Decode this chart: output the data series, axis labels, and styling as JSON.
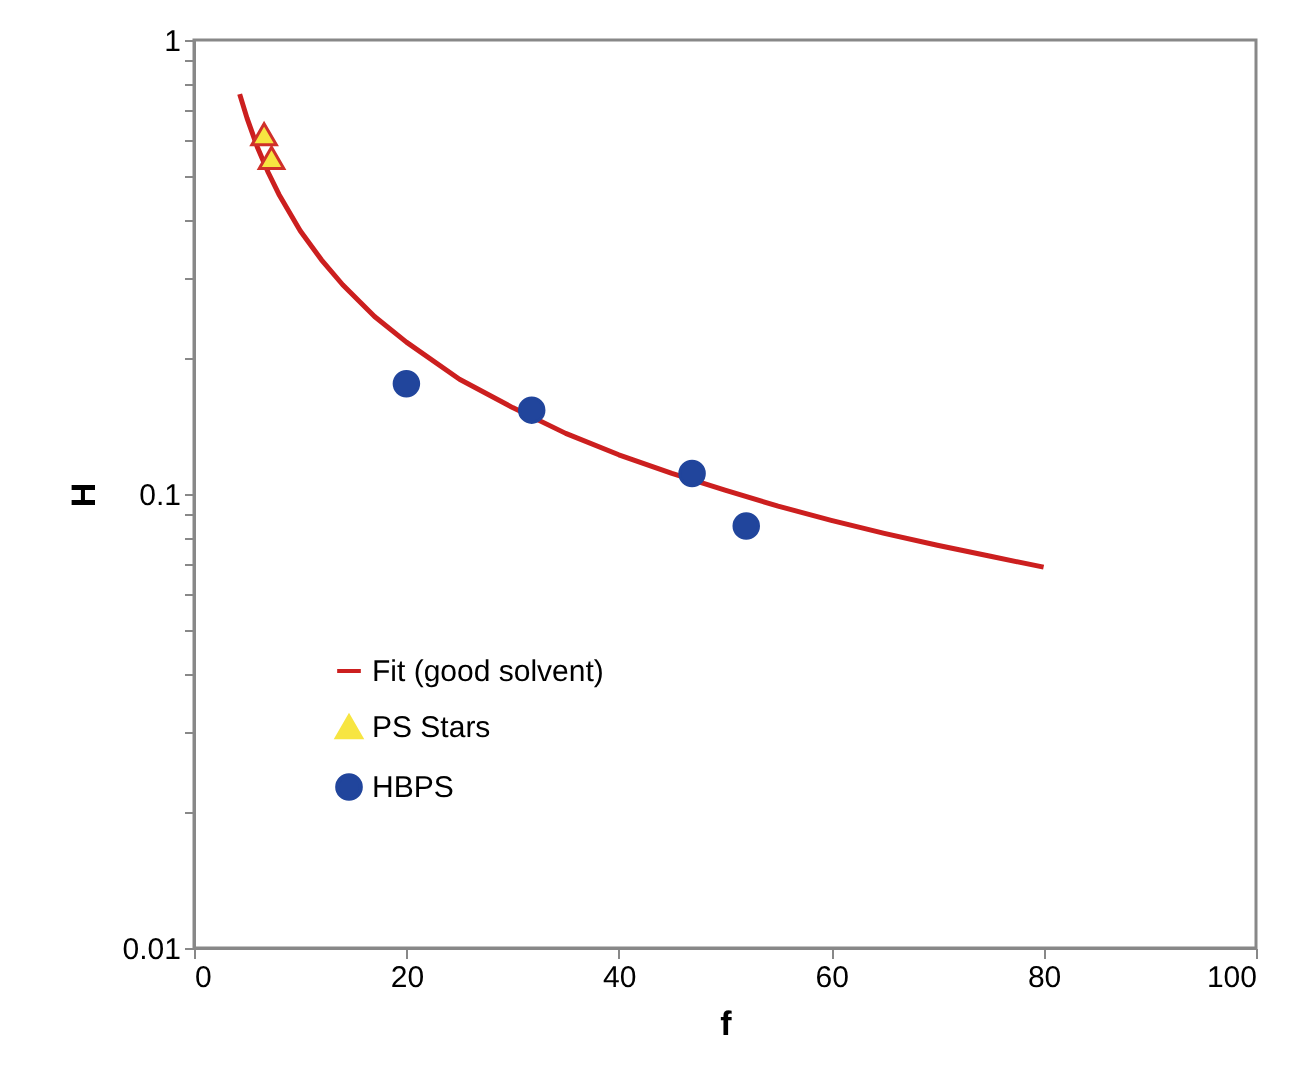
{
  "chart_data": {
    "type": "scatter",
    "xlabel": "f",
    "ylabel": "H",
    "xlim": [
      0,
      100
    ],
    "xticks": [
      0,
      20,
      40,
      60,
      80,
      100
    ],
    "ylim": [
      0.01,
      1
    ],
    "yticks": [
      0.01,
      {
        "value": 0.02,
        "label": null
      },
      {
        "value": 0.03,
        "label": null
      },
      {
        "value": 0.04,
        "label": null
      },
      {
        "value": 0.05,
        "label": null
      },
      {
        "value": 0.06,
        "label": null
      },
      {
        "value": 0.07,
        "label": null
      },
      {
        "value": 0.08,
        "label": null
      },
      {
        "value": 0.09,
        "label": null
      },
      0.1,
      {
        "value": 0.2,
        "label": null
      },
      {
        "value": 0.3,
        "label": null
      },
      {
        "value": 0.4,
        "label": null
      },
      {
        "value": 0.5,
        "label": null
      },
      {
        "value": 0.6,
        "label": null
      },
      {
        "value": 0.7,
        "label": null
      },
      {
        "value": 0.8,
        "label": null
      },
      {
        "value": 0.9,
        "label": null
      },
      1
    ],
    "log": "y",
    "grid": false,
    "legend": "bottom left",
    "series": [
      {
        "name": "Fit (good solvent)",
        "type": "line",
        "marker": "none",
        "line_style": "solid",
        "color": "#cc1f1f",
        "x": [
          4.3,
          5,
          6,
          7,
          8,
          10,
          12,
          14,
          17,
          20,
          25,
          30,
          35,
          40,
          45,
          50,
          55,
          60,
          65,
          70,
          75,
          80
        ],
        "values": [
          0.76,
          0.672,
          0.578,
          0.51,
          0.457,
          0.38,
          0.328,
          0.289,
          0.246,
          0.216,
          0.179,
          0.155,
          0.136,
          0.122,
          0.111,
          0.102,
          0.094,
          0.0875,
          0.0819,
          0.0771,
          0.0729,
          0.069
        ]
      },
      {
        "name": "PS Stars",
        "marker": "triangle",
        "color": "#f7e541",
        "x": [
          6.6,
          7.3
        ],
        "values": [
          0.62,
          0.55
        ]
      },
      {
        "name": "HBPS",
        "marker": "circle",
        "color": "#21459c",
        "x": [
          20,
          31.8,
          46.9,
          52
        ],
        "values": [
          0.175,
          0.153,
          0.111,
          0.085
        ]
      }
    ]
  }
}
